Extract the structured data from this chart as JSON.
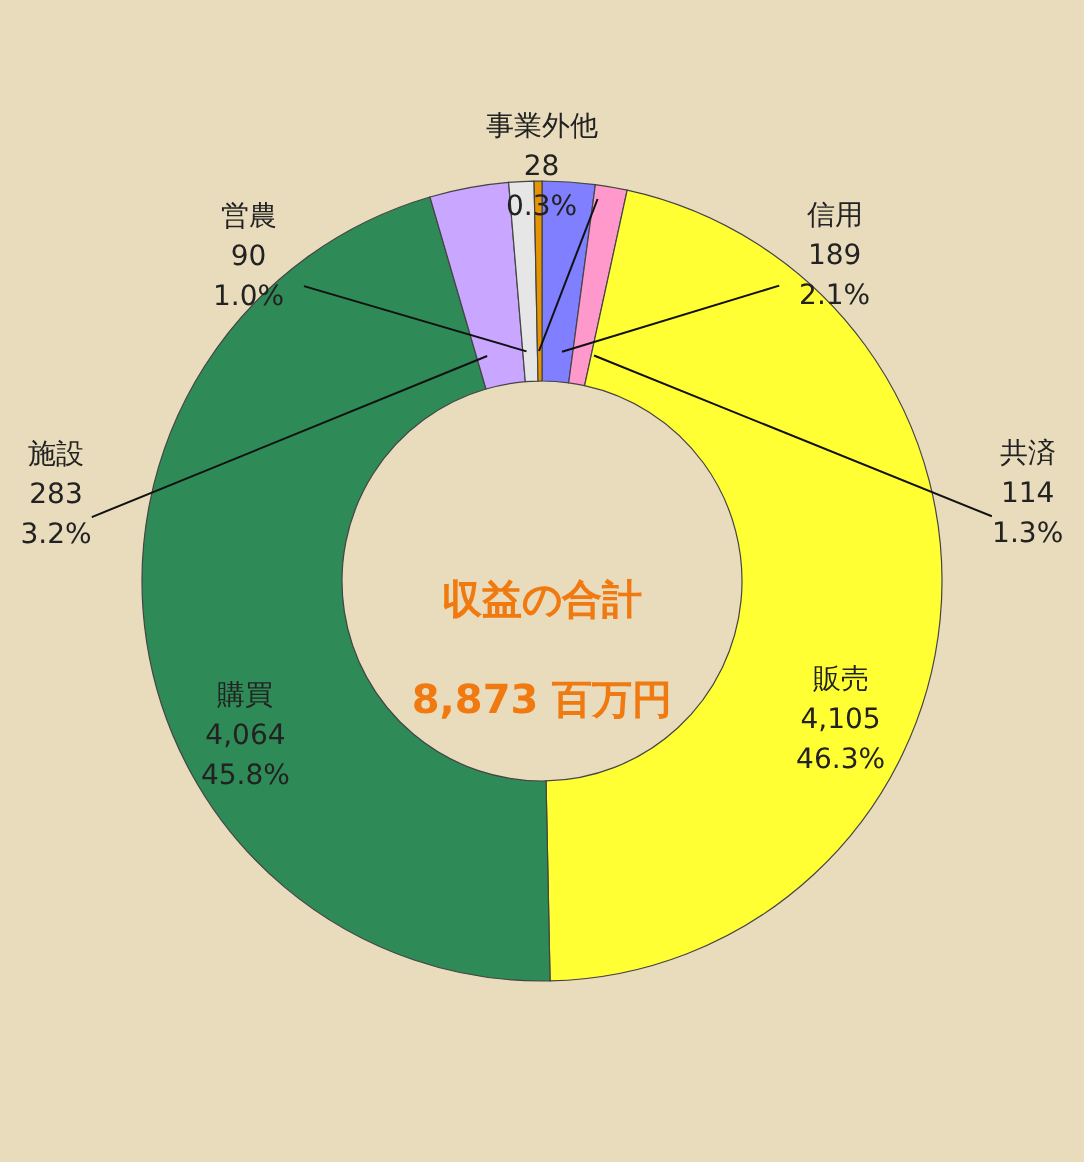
{
  "chart_data": {
    "type": "donut",
    "categories": [
      "信用",
      "共済",
      "販売",
      "購買",
      "施設",
      "営農",
      "事業外他"
    ],
    "values": [
      189,
      114,
      4105,
      4064,
      283,
      90,
      28
    ],
    "colors": [
      "#7f7fff",
      "#ff99cc",
      "#ffff33",
      "#2e8b57",
      "#c9a6ff",
      "#e6e6e6",
      "#e69500"
    ],
    "value_labels": [
      "189\n2.1%",
      "114\n1.3%",
      "4,105\n46.3%",
      "4,064\n45.8%",
      "283\n3.2%",
      "90\n1.0%",
      "28\n0.3%"
    ],
    "annotations": [
      "収益の合計",
      "8,873 百万円"
    ]
  }
}
